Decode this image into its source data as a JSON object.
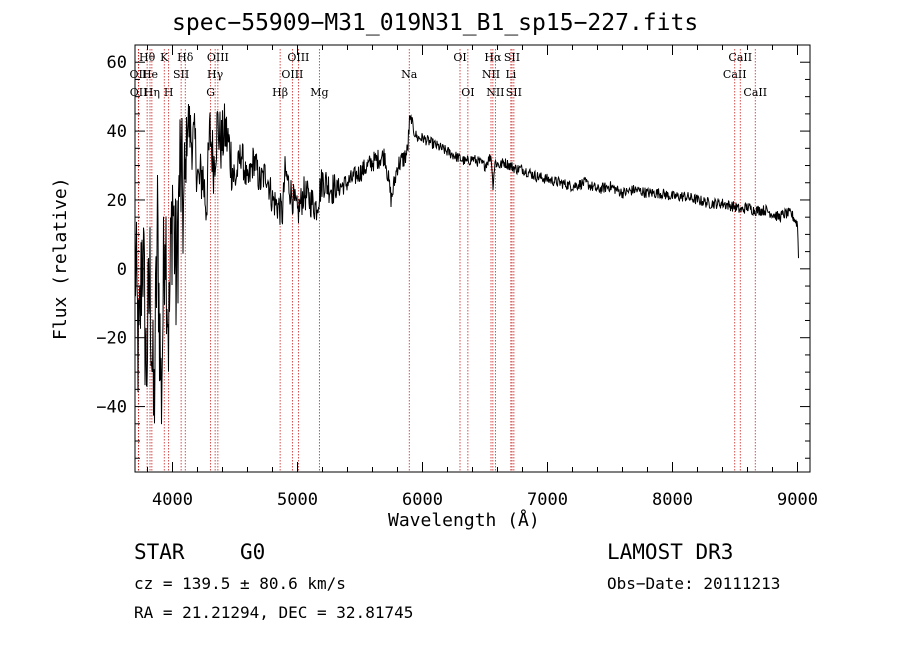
{
  "chart_data": {
    "type": "line",
    "title": "spec−55909−M31_019N31_B1_sp15−227.fits",
    "xlabel": "Wavelength (Å)",
    "ylabel": "Flux (relative)",
    "xlim": [
      3700,
      9100
    ],
    "ylim": [
      -59,
      65
    ],
    "xticks": [
      4000,
      5000,
      6000,
      7000,
      8000,
      9000
    ],
    "yticks": [
      -40,
      -20,
      0,
      20,
      40,
      60
    ],
    "ytick_labels": [
      "−40",
      "−20",
      "0",
      "20",
      "40",
      "60"
    ],
    "grid": false,
    "series": [
      {
        "name": "spectrum",
        "x": [
          3700,
          3730,
          3760,
          3790,
          3820,
          3850,
          3880,
          3910,
          3940,
          3970,
          4000,
          4030,
          4060,
          4090,
          4120,
          4150,
          4180,
          4210,
          4240,
          4270,
          4300,
          4330,
          4360,
          4390,
          4420,
          4450,
          4500,
          4550,
          4600,
          4650,
          4700,
          4750,
          4800,
          4850,
          4880,
          4900,
          4950,
          5000,
          5050,
          5100,
          5150,
          5200,
          5250,
          5300,
          5400,
          5500,
          5600,
          5700,
          5750,
          5800,
          5850,
          5880,
          5895,
          5910,
          5930,
          5960,
          6000,
          6050,
          6100,
          6150,
          6200,
          6250,
          6300,
          6350,
          6400,
          6450,
          6500,
          6550,
          6563,
          6580,
          6620,
          6650,
          6700,
          6750,
          6800,
          6900,
          7000,
          7100,
          7200,
          7300,
          7400,
          7500,
          7600,
          7700,
          7800,
          7900,
          8000,
          8100,
          8200,
          8300,
          8400,
          8500,
          8550,
          8600,
          8650,
          8700,
          8750,
          8800,
          8850,
          8900,
          8950,
          9000,
          9010
        ],
        "values": [
          5,
          -28,
          10,
          -30,
          -2,
          -44,
          12,
          -38,
          18,
          -20,
          22,
          -5,
          30,
          15,
          44,
          38,
          36,
          24,
          28,
          18,
          40,
          30,
          42,
          36,
          40,
          36,
          25,
          34,
          24,
          32,
          25,
          28,
          20,
          18,
          16,
          28,
          22,
          16,
          22,
          20,
          18,
          26,
          24,
          23,
          25,
          28,
          31,
          33,
          20,
          30,
          32,
          34,
          42,
          44,
          40,
          38,
          38,
          37,
          36,
          35,
          34,
          33,
          32,
          31,
          32,
          31,
          30,
          33,
          24,
          31,
          30,
          31,
          30,
          29,
          29,
          27,
          26,
          25,
          24,
          25,
          23,
          24,
          22,
          23,
          22,
          22,
          21,
          21,
          20,
          19,
          19,
          18,
          17,
          18,
          17,
          17,
          17,
          16,
          15,
          16,
          16,
          13,
          1
        ]
      }
    ],
    "lines": [
      {
        "name": "Hδ",
        "w": 4102,
        "row": 0,
        "v": 1
      },
      {
        "name": "OII",
        "w": 3727,
        "row": 1,
        "v": 1
      },
      {
        "name": "OII",
        "w": 3729,
        "row": 2,
        "v": 1
      },
      {
        "name": "Hθ",
        "w": 3797,
        "row": 0,
        "v": 1
      },
      {
        "name": "He",
        "w": 3820,
        "row": 1,
        "v": 1
      },
      {
        "name": "Hη",
        "w": 3835,
        "row": 2,
        "v": 1
      },
      {
        "name": "K",
        "w": 3934,
        "row": 0,
        "v": 1
      },
      {
        "name": "H",
        "w": 3969,
        "row": 2,
        "v": 1
      },
      {
        "name": "SII",
        "w": 4069,
        "row": 1,
        "v": 1
      },
      {
        "name": "OIII",
        "w": 4363,
        "row": 0,
        "v": 1
      },
      {
        "name": "Hγ",
        "w": 4341,
        "row": 1,
        "v": 1
      },
      {
        "name": "G",
        "w": 4305,
        "row": 2,
        "v": 1
      },
      {
        "name": "Hβ",
        "w": 4861,
        "row": 2,
        "v": 1
      },
      {
        "name": "OIII",
        "w": 4959,
        "row": 1,
        "v": 1
      },
      {
        "name": "OIII",
        "w": 5007,
        "row": 0,
        "v": 1
      },
      {
        "name": "Mg",
        "w": 5175,
        "row": 2,
        "v": 1
      },
      {
        "name": "Na",
        "w": 5894,
        "row": 1,
        "v": 1
      },
      {
        "name": "OI",
        "w": 6300,
        "row": 0,
        "v": 1
      },
      {
        "name": "OI",
        "w": 6363,
        "row": 2,
        "v": 1
      },
      {
        "name": "Hα",
        "w": 6563,
        "row": 0,
        "v": 1
      },
      {
        "name": "NII",
        "w": 6548,
        "row": 1,
        "v": 1
      },
      {
        "name": "NII",
        "w": 6583,
        "row": 2,
        "v": 1
      },
      {
        "name": "SII",
        "w": 6716,
        "row": 0,
        "v": 1
      },
      {
        "name": "Li",
        "w": 6707,
        "row": 1,
        "v": 1
      },
      {
        "name": "SII",
        "w": 6731,
        "row": 2,
        "v": 1
      },
      {
        "name": "CaII",
        "w": 8498,
        "row": 1,
        "v": 1
      },
      {
        "name": "CaII",
        "w": 8542,
        "row": 0,
        "v": 1
      },
      {
        "name": "CaII",
        "w": 8662,
        "row": 2,
        "v": 1
      }
    ]
  },
  "info": {
    "class": "STAR",
    "subclass": "G0",
    "survey": "LAMOST DR3",
    "cz": "cz = 139.5 ± 80.6 km/s",
    "obs_date": "Obs−Date: 20111213",
    "radec": "RA =  21.21294, DEC =  32.81745"
  },
  "colors": {
    "axis": "#000000",
    "line": "#000000",
    "marker": "#cc2222"
  }
}
